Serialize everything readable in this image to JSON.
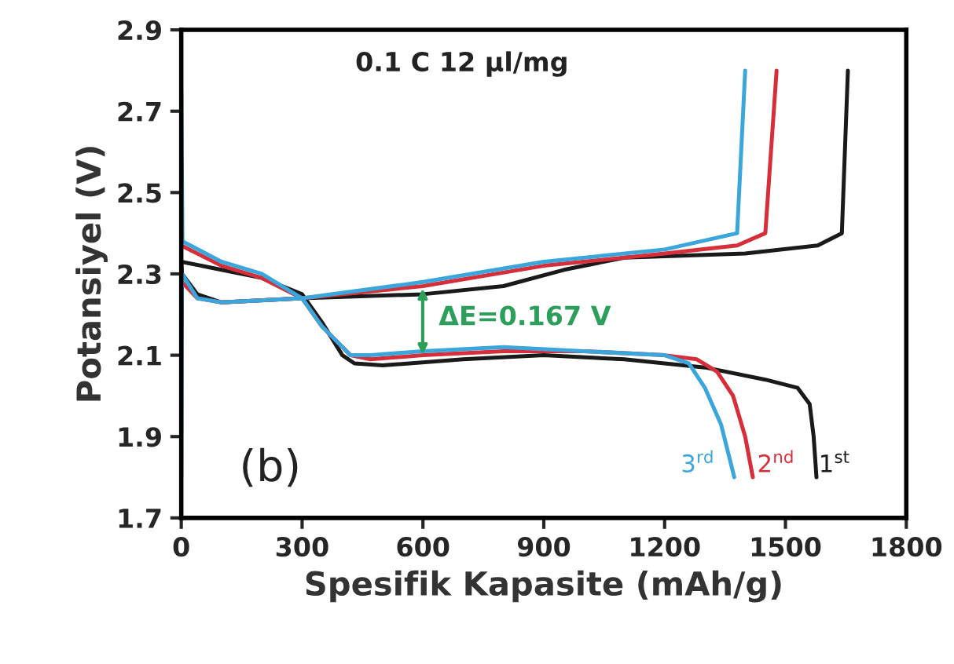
{
  "chart_data": {
    "type": "line",
    "xlabel": "Spesifik Kapasite (mAh/g)",
    "ylabel": "Potansiyel (V)",
    "xlim": [
      0,
      1800
    ],
    "xticks": [
      0,
      300,
      600,
      900,
      1200,
      1500,
      1800
    ],
    "ylim": [
      1.7,
      2.9
    ],
    "yticks": [
      1.7,
      1.9,
      2.1,
      2.3,
      2.5,
      2.7,
      2.9
    ],
    "grid": false,
    "legend": false,
    "marker": "none",
    "line_style": "solid",
    "annotations": [
      "0.1 C 12 µl/mg",
      "(b)",
      "ΔE=0.167 V"
    ],
    "series": [
      {
        "name": "1$^{st}$",
        "color": "#1a1a1a",
        "x": [
          0,
          100,
          200,
          300,
          350,
          400,
          430,
          500,
          700,
          900,
          1100,
          1300,
          1450,
          1530,
          1560,
          1570,
          1577,
          null,
          0,
          2,
          40,
          100,
          300,
          600,
          800,
          950,
          1100,
          1400,
          1580,
          1640,
          1655
        ],
        "values": [
          2.33,
          2.31,
          2.29,
          2.25,
          2.18,
          2.1,
          2.08,
          2.075,
          2.09,
          2.1,
          2.09,
          2.07,
          2.04,
          2.02,
          1.98,
          1.9,
          1.8,
          null,
          2.33,
          2.3,
          2.25,
          2.23,
          2.24,
          2.25,
          2.27,
          2.31,
          2.34,
          2.35,
          2.37,
          2.4,
          2.8
        ]
      },
      {
        "name": "2$^{nd}$",
        "color": "#d62f3a",
        "x": [
          0,
          100,
          200,
          300,
          350,
          420,
          470,
          600,
          800,
          1000,
          1200,
          1280,
          1330,
          1370,
          1400,
          1419,
          null,
          0,
          2,
          40,
          100,
          300,
          600,
          900,
          1200,
          1380,
          1450,
          1478
        ],
        "values": [
          2.37,
          2.32,
          2.29,
          2.24,
          2.17,
          2.1,
          2.09,
          2.1,
          2.11,
          2.11,
          2.1,
          2.09,
          2.06,
          2.0,
          1.9,
          1.8,
          null,
          2.32,
          2.28,
          2.24,
          2.23,
          2.24,
          2.27,
          2.32,
          2.35,
          2.37,
          2.4,
          2.8
        ]
      },
      {
        "name": "3$^{rd}$",
        "color": "#3aa6dc",
        "x": [
          0,
          3,
          100,
          200,
          300,
          350,
          420,
          470,
          600,
          800,
          1000,
          1200,
          1260,
          1300,
          1340,
          1373,
          null,
          0,
          2,
          40,
          100,
          300,
          600,
          900,
          1200,
          1380,
          1400
        ],
        "values": [
          2.75,
          2.38,
          2.33,
          2.3,
          2.24,
          2.17,
          2.1,
          2.1,
          2.11,
          2.12,
          2.11,
          2.1,
          2.08,
          2.02,
          1.93,
          1.8,
          null,
          1.8,
          2.3,
          2.24,
          2.23,
          2.24,
          2.28,
          2.33,
          2.36,
          2.4,
          2.8
        ]
      }
    ]
  }
}
